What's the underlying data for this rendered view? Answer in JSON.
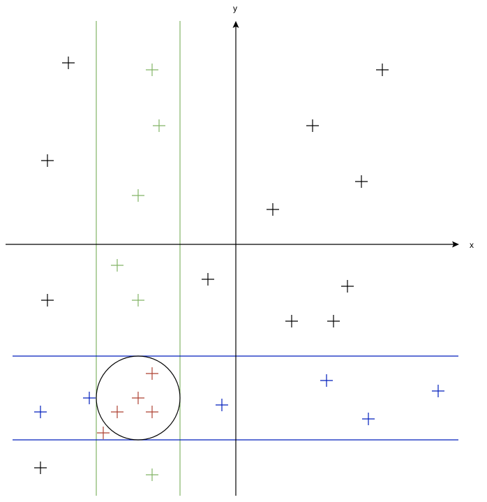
{
  "axes": {
    "x_label": "x",
    "y_label": "y"
  },
  "colors": {
    "axis": "#000000",
    "black_point": "#000000",
    "green": "#82b366",
    "blue": "#001dbc",
    "red": "#ae4132",
    "circle": "#000000"
  },
  "chart_data": {
    "type": "scatter",
    "marker": "plus",
    "vertical_band_x": [
      -4,
      -1.6
    ],
    "horizontal_band_y": [
      -3.2,
      -5.6
    ],
    "circle": {
      "center": [
        -2.8,
        -4.4
      ],
      "radius": 1.2
    },
    "series": [
      {
        "color": "black",
        "points": [
          [
            -4.8,
            5.2
          ],
          [
            -5.4,
            2.4
          ],
          [
            -5.4,
            -1.6
          ],
          [
            -0.8,
            -1
          ],
          [
            4.2,
            5
          ],
          [
            2.2,
            3.4
          ],
          [
            3.6,
            1.8
          ],
          [
            1.06,
            1
          ],
          [
            3.2,
            -1.2
          ],
          [
            1.6,
            -2.2
          ],
          [
            2.8,
            -2.2
          ],
          [
            -5.6,
            -6.4
          ]
        ]
      },
      {
        "color": "green",
        "points": [
          [
            -2.4,
            5
          ],
          [
            -2.2,
            3.4
          ],
          [
            -2.8,
            1.4
          ],
          [
            -3.4,
            -0.6
          ],
          [
            -2.8,
            -1.6
          ],
          [
            -2.4,
            -6.6
          ]
        ]
      },
      {
        "color": "blue",
        "points": [
          [
            -5.6,
            -4.8
          ],
          [
            -4.2,
            -4.4
          ],
          [
            -0.4,
            -4.6
          ],
          [
            2.6,
            -3.9
          ],
          [
            3.8,
            -5
          ],
          [
            5.8,
            -4.2
          ]
        ]
      },
      {
        "color": "red",
        "points": [
          [
            -2.4,
            -3.7
          ],
          [
            -2.8,
            -4.4
          ],
          [
            -3.4,
            -4.8
          ],
          [
            -2.4,
            -4.8
          ],
          [
            -3.8,
            -5.4
          ]
        ]
      }
    ]
  }
}
